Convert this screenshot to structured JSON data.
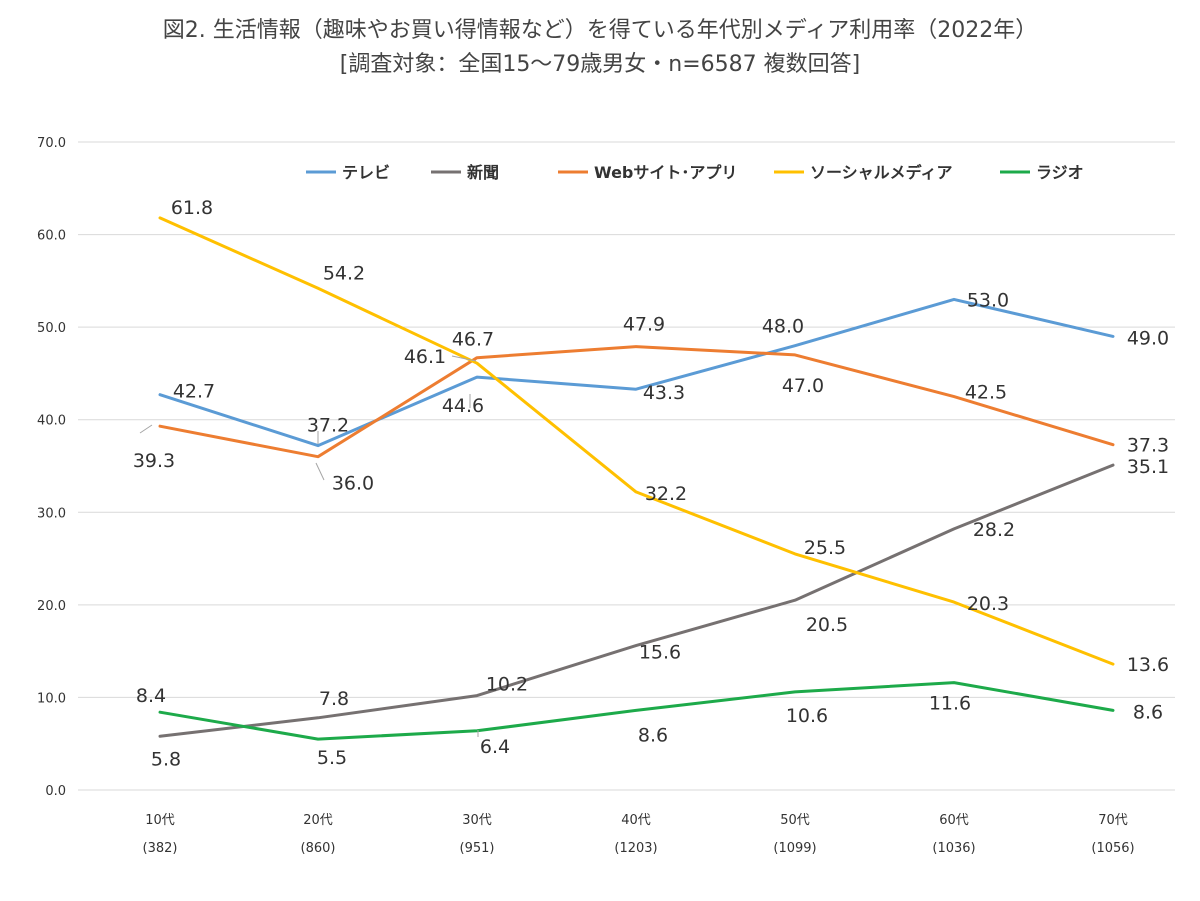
{
  "chart_data": {
    "type": "line",
    "title": "図2. 生活情報（趣味やお買い得情報など）を得ている年代別メディア利用率（2022年）",
    "subtitle": "[調査対象：全国15～79歳男女・n=6587 複数回答]",
    "categories": [
      "10代",
      "20代",
      "30代",
      "40代",
      "50代",
      "60代",
      "70代"
    ],
    "category_counts": [
      "(382)",
      "(860)",
      "(951)",
      "(1203)",
      "(1099)",
      "(1036)",
      "(1056)"
    ],
    "ylim": [
      0,
      70
    ],
    "yticks": [
      "0.0",
      "10.0",
      "20.0",
      "30.0",
      "40.0",
      "50.0",
      "60.0",
      "70.0"
    ],
    "grid": true,
    "legend_position": "top",
    "series": [
      {
        "name": "テレビ",
        "color": "#5b9bd5",
        "values": [
          42.7,
          37.2,
          44.6,
          43.3,
          48.0,
          53.0,
          49.0
        ],
        "labels": [
          "42.7",
          "37.2",
          "44.6",
          "43.3",
          "48.0",
          "53.0",
          "49.0"
        ]
      },
      {
        "name": "新聞",
        "color": "#767171",
        "values": [
          5.8,
          7.8,
          10.2,
          15.6,
          20.5,
          28.2,
          35.1
        ],
        "labels": [
          "5.8",
          "7.8",
          "10.2",
          "15.6",
          "20.5",
          "28.2",
          "35.1"
        ]
      },
      {
        "name": "Webサイト･アプリ",
        "color": "#ed7d31",
        "values": [
          39.3,
          36.0,
          46.7,
          47.9,
          47.0,
          42.5,
          37.3
        ],
        "labels": [
          "39.3",
          "36.0",
          "46.7",
          "47.9",
          "47.0",
          "42.5",
          "37.3"
        ]
      },
      {
        "name": "ソーシャルメディア",
        "color": "#ffc000",
        "values": [
          61.8,
          54.2,
          46.1,
          32.2,
          25.5,
          20.3,
          13.6
        ],
        "labels": [
          "61.8",
          "54.2",
          "46.1",
          "32.2",
          "25.5",
          "20.3",
          "13.6"
        ]
      },
      {
        "name": "ラジオ",
        "color": "#1daa4a",
        "values": [
          8.4,
          5.5,
          6.4,
          8.6,
          10.6,
          11.6,
          8.6
        ],
        "labels": [
          "8.4",
          "5.5",
          "6.4",
          "8.6",
          "10.6",
          "11.6",
          "8.6"
        ]
      }
    ]
  }
}
